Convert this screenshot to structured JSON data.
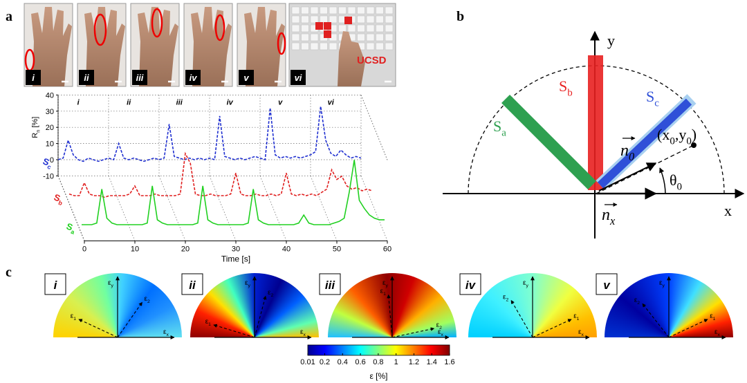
{
  "panel_a": {
    "label": "a",
    "photos": [
      "i",
      "ii",
      "iii",
      "iv",
      "v",
      "vi"
    ],
    "photo_text": "UCSD"
  },
  "chart_data": {
    "type": "line3d",
    "ylabel": "Rn [%]",
    "xlabel": "Time [s]",
    "annotations": [
      "i",
      "ii",
      "iii",
      "iv",
      "v",
      "vi"
    ],
    "x": [
      0,
      1,
      2,
      3,
      4,
      5,
      6,
      7,
      8,
      9,
      10,
      11,
      12,
      13,
      14,
      15,
      16,
      17,
      18,
      19,
      20,
      21,
      22,
      23,
      24,
      25,
      26,
      27,
      28,
      29,
      30,
      31,
      32,
      33,
      34,
      35,
      36,
      37,
      38,
      39,
      40,
      41,
      42,
      43,
      44,
      45,
      46,
      47,
      48,
      49,
      50,
      51,
      52,
      53,
      54,
      55,
      56,
      57,
      58,
      59,
      60
    ],
    "series": [
      {
        "name": "Sc",
        "color": "#1f2fd0",
        "style": "dashed",
        "values": [
          0,
          1,
          12,
          3,
          0,
          -1,
          1,
          0,
          -1,
          0,
          1,
          0,
          10,
          1,
          0,
          1,
          0,
          -1,
          0,
          1,
          0,
          1,
          22,
          2,
          1,
          0,
          1,
          0,
          1,
          0,
          1,
          0,
          27,
          2,
          1,
          0,
          1,
          0,
          1,
          2,
          1,
          0,
          32,
          3,
          1,
          2,
          1,
          2,
          1,
          2,
          3,
          5,
          33,
          12,
          4,
          2,
          6,
          3,
          1,
          2,
          1
        ]
      },
      {
        "name": "Sb",
        "color": "#e02020",
        "style": "dashed",
        "values": [
          1,
          0,
          0,
          8,
          1,
          0,
          0,
          -1,
          0,
          0,
          0,
          0,
          1,
          6,
          0,
          0,
          0,
          1,
          0,
          0,
          0,
          0,
          1,
          26,
          20,
          1,
          0,
          0,
          1,
          0,
          0,
          0,
          1,
          14,
          1,
          0,
          0,
          1,
          0,
          0,
          1,
          0,
          1,
          14,
          1,
          0,
          1,
          0,
          1,
          0,
          2,
          4,
          16,
          10,
          12,
          6,
          4,
          5,
          3,
          4,
          3
        ]
      },
      {
        "name": "Sa",
        "color": "#20d020",
        "style": "solid",
        "values": [
          0,
          0,
          0,
          1,
          22,
          4,
          1,
          0,
          0,
          0,
          0,
          0,
          0,
          1,
          24,
          3,
          1,
          0,
          0,
          0,
          0,
          0,
          0,
          1,
          24,
          3,
          1,
          0,
          0,
          0,
          0,
          0,
          0,
          1,
          22,
          3,
          1,
          0,
          0,
          0,
          0,
          0,
          0,
          1,
          6,
          1,
          0,
          0,
          0,
          0,
          1,
          2,
          4,
          20,
          40,
          15,
          10,
          6,
          4,
          3,
          3
        ]
      }
    ],
    "xlim": [
      0,
      60
    ],
    "xticks": [
      0,
      10,
      20,
      30,
      40,
      50,
      60
    ],
    "ylim": [
      -10,
      40
    ],
    "yticks": [
      40,
      30,
      20,
      10,
      0,
      -10
    ],
    "grid": true
  },
  "panel_b": {
    "label": "b",
    "y_axis": "y",
    "x_axis": "x",
    "sensor_b": "Sb",
    "sensor_c": "Sc",
    "sensor_a": "Sa",
    "point": "(x0,y0)",
    "normal": "n0",
    "angle": "θ0",
    "unit_x": "nx"
  },
  "panel_c": {
    "label": "c",
    "plots": [
      {
        "label": "i",
        "axes": [
          "εy",
          "εx",
          "ε1",
          "ε2"
        ]
      },
      {
        "label": "ii",
        "axes": [
          "εy",
          "εx",
          "ε1",
          "ε2"
        ]
      },
      {
        "label": "iii",
        "axes": [
          "εy",
          "εx",
          "ε1",
          "ε2"
        ]
      },
      {
        "label": "iv",
        "axes": [
          "εy",
          "εx",
          "ε1",
          "ε2"
        ]
      },
      {
        "label": "v",
        "axes": [
          "εy",
          "εx",
          "ε1",
          "ε2"
        ]
      }
    ],
    "colorbar": {
      "lim": [
        0.01,
        1.6
      ],
      "ticks": [
        0.01,
        0.2,
        0.4,
        0.6,
        0.8,
        1,
        1.2,
        1.4,
        1.6
      ],
      "label": "ε [%]"
    }
  }
}
